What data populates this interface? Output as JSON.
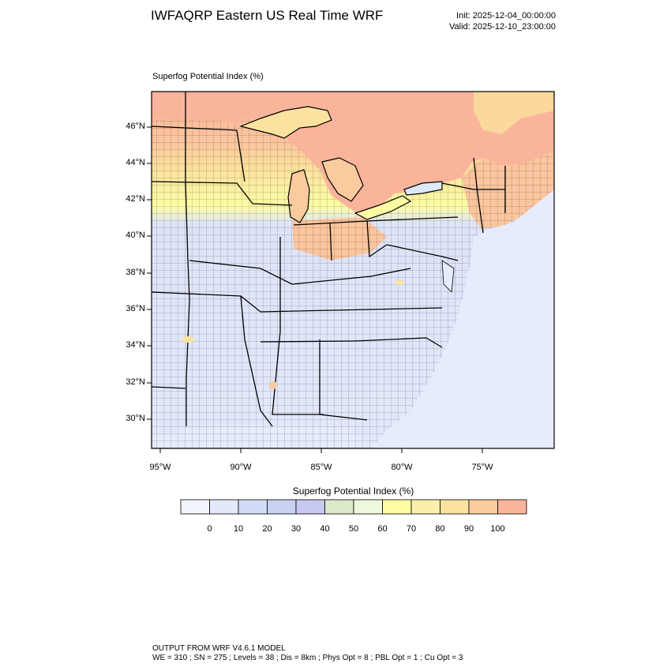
{
  "header": {
    "title": "IWFAQRP Eastern US Real Time WRF",
    "init": "Init: 2025-12-04_00:00:00",
    "valid": "Valid: 2025-12-10_23:00:00"
  },
  "map": {
    "field_label": "Superfog Potential Index   (%)",
    "lat_labels": [
      "46°N",
      "44°N",
      "42°N",
      "40°N",
      "38°N",
      "36°N",
      "34°N",
      "32°N",
      "30°N"
    ],
    "lon_labels": [
      "95°W",
      "90°W",
      "85°W",
      "80°W",
      "75°W"
    ]
  },
  "colorbar": {
    "title": "Superfog Potential Index  (%)",
    "labels": [
      "0",
      "10",
      "20",
      "30",
      "40",
      "50",
      "60",
      "70",
      "80",
      "90",
      "100"
    ],
    "colors": [
      "#f2f4fb",
      "#e3e9fb",
      "#d3dcf7",
      "#c8d1f2",
      "#c6c8f0",
      "#dbe9c8",
      "#eef8dc",
      "#fdfca4",
      "#fbefae",
      "#fbe29e",
      "#fbcb9e",
      "#fbb49c"
    ]
  },
  "footer": {
    "line1": "OUTPUT FROM WRF V4.6.1 MODEL",
    "line2": "WE = 310 ; SN = 275 ; Levels = 38 ; Dis = 8km ; Phys Opt = 8 ; PBL Opt = 1 ; Cu Opt = 3"
  }
}
